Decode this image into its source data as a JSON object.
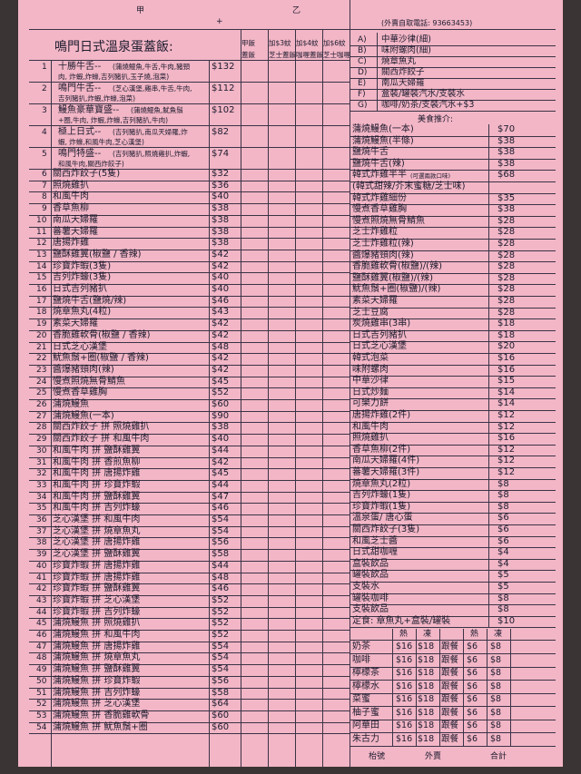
{
  "header": {
    "left": "甲",
    "plus": "+",
    "right": "乙",
    "phone": "(外賣自取電話: 93663453)"
  },
  "menu": {
    "title": "鳴門日式溫泉蛋蓋飯:",
    "columns": [
      [
        "甲飯",
        "蓋飯"
      ],
      [
        "加$3蚊",
        "芝士蓋飯"
      ],
      [
        "加$4蚊",
        "咖喱蓋飯"
      ],
      [
        "加$6蚊",
        "芝士咖喱"
      ]
    ],
    "items": [
      {
        "no": "1",
        "name": "十勝牛舌--",
        "desc": "(蒲燒鰻魚,牛舌,牛肉,豬頸肉, 炸蝦,炸蠔,吉列豬扒,玉子燒,泡菜)",
        "price": "$132"
      },
      {
        "no": "2",
        "name": "鳴門牛舌--",
        "desc": "(芝心漢堡,雞串,牛舌,牛肉, 吉列豬扒,炸蝦,炸蠔,泡菜)",
        "price": "$112"
      },
      {
        "no": "3",
        "name": "鰻魚豪華寶盛--",
        "desc": "(蒲燒鰻魚,魷魚鬚+圈,牛肉, 炸蝦,炸蠔,吉列豬扒,牛肉)",
        "price": "$102"
      },
      {
        "no": "4",
        "name": "極上日式--",
        "desc": "(吉列豬扒,南瓜天婦羅,炸蝦, 炸蠔,和風牛肉,芝心漢堡)",
        "price": "$82"
      },
      {
        "no": "5",
        "name": "鳴門特盛--",
        "desc": "(吉列豬扒,照燒雞扒,炸蝦, 和風牛肉,關西炸餃子)",
        "price": "$74"
      },
      {
        "no": "6",
        "name": "關西炸餃子(5隻)",
        "price": "$32"
      },
      {
        "no": "7",
        "name": "照燒雞扒",
        "price": "$36"
      },
      {
        "no": "8",
        "name": "和風牛肉",
        "price": "$40"
      },
      {
        "no": "9",
        "name": "香草魚柳",
        "price": "$38"
      },
      {
        "no": "10",
        "name": "南瓜天婦羅",
        "price": "$38"
      },
      {
        "no": "11",
        "name": "蕃薯天婦羅",
        "price": "$38"
      },
      {
        "no": "12",
        "name": "唐揚炸雞",
        "price": "$38"
      },
      {
        "no": "13",
        "name": "鹽酥雞翼(椒鹽 / 香辣)",
        "price": "$42"
      },
      {
        "no": "14",
        "name": "珍寶炸蝦(3隻)",
        "price": "$42"
      },
      {
        "no": "15",
        "name": "吉列炸蠔(3隻)",
        "price": "$40"
      },
      {
        "no": "16",
        "name": "日式吉列豬扒",
        "price": "$40"
      },
      {
        "no": "17",
        "name": "鹽燒牛舌(鹽燒/辣)",
        "price": "$46"
      },
      {
        "no": "18",
        "name": "燒章魚丸(4粒)",
        "price": "$43"
      },
      {
        "no": "19",
        "name": "素菜天婦羅",
        "price": "$42"
      },
      {
        "no": "20",
        "name": "香脆雞軟骨(椒鹽 / 香辣)",
        "price": "$42"
      },
      {
        "no": "21",
        "name": "日式芝心漢堡",
        "price": "$48"
      },
      {
        "no": "22",
        "name": "魷魚鬚+圈(椒鹽 / 香辣)",
        "price": "$42"
      },
      {
        "no": "23",
        "name": "醬爆豬頸肉(辣)",
        "price": "$42"
      },
      {
        "no": "24",
        "name": "慢煮照燒無骨鯖魚",
        "price": "$45"
      },
      {
        "no": "25",
        "name": "慢煮香草雞胸",
        "price": "$52"
      },
      {
        "no": "26",
        "name": "蒲燒鰻魚",
        "price": "$60"
      },
      {
        "no": "27",
        "name": "蒲燒鰻魚(一本)",
        "price": "$90"
      },
      {
        "no": "28",
        "name": "關西炸餃子 拼 照燒雞扒",
        "price": "$38"
      },
      {
        "no": "29",
        "name": "關西炸餃子 拼 和風牛肉",
        "price": "$40"
      },
      {
        "no": "30",
        "name": "和風牛肉 拼 鹽酥雞翼",
        "price": "$44"
      },
      {
        "no": "31",
        "name": "和風牛肉 拼 香煎魚柳",
        "price": "$42"
      },
      {
        "no": "32",
        "name": "和風牛肉 拼 唐揚炸雞",
        "price": "$45"
      },
      {
        "no": "33",
        "name": "和風牛肉 拼 珍寶炸蝦",
        "price": "$44"
      },
      {
        "no": "34",
        "name": "和風牛肉 拼 鹽酥雞翼",
        "price": "$47"
      },
      {
        "no": "35",
        "name": "和風牛肉 拼 吉列炸蠔",
        "price": "$46"
      },
      {
        "no": "36",
        "name": "芝心漢堡 拼 和風牛肉",
        "price": "$54"
      },
      {
        "no": "37",
        "name": "芝心漢堡 拼 燒章魚丸",
        "price": "$54"
      },
      {
        "no": "38",
        "name": "芝心漢堡 拼 唐揚炸雞",
        "price": "$56"
      },
      {
        "no": "39",
        "name": "芝心漢堡 拼 鹽酥雞翼",
        "price": "$58"
      },
      {
        "no": "40",
        "name": "珍寶炸蝦 拼 唐揚炸雞",
        "price": "$44"
      },
      {
        "no": "41",
        "name": "珍寶炸蝦 拼 唐揚炸雞",
        "price": "$48"
      },
      {
        "no": "42",
        "name": "珍寶炸蝦 拼 鹽酥雞翼",
        "price": "$46"
      },
      {
        "no": "43",
        "name": "珍寶炸蝦 拼 芝心漢堡",
        "price": "$52"
      },
      {
        "no": "44",
        "name": "珍寶炸蝦 拼 吉列炸蠔",
        "price": "$52"
      },
      {
        "no": "45",
        "name": "蒲燒鰻魚 拼 照燒雞扒",
        "price": "$52"
      },
      {
        "no": "46",
        "name": "蒲燒鰻魚 拼 和風牛肉",
        "price": "$52"
      },
      {
        "no": "47",
        "name": "蒲燒鰻魚 拼 唐揚炸雞",
        "price": "$54"
      },
      {
        "no": "48",
        "name": "蒲燒鰻魚 拼 燒章魚丸",
        "price": "$54"
      },
      {
        "no": "49",
        "name": "蒲燒鰻魚 拼 鹽酥雞翼",
        "price": "$54"
      },
      {
        "no": "50",
        "name": "蒲燒鰻魚 拼 珍寶炸蝦",
        "price": "$56"
      },
      {
        "no": "51",
        "name": "蒲燒鰻魚 拼 吉列炸蠔",
        "price": "$58"
      },
      {
        "no": "52",
        "name": "蒲燒鰻魚 拼 芝心漢堡",
        "price": "$64"
      },
      {
        "no": "53",
        "name": "蒲燒鰻魚 拼 香脆雞軟骨",
        "price": "$60"
      },
      {
        "no": "54",
        "name": "蒲燒鰻魚 拼 魷魚鬚+圈",
        "price": "$60"
      }
    ]
  },
  "sets": [
    {
      "letter": "A)",
      "name": "中華沙律(細)"
    },
    {
      "letter": "B)",
      "name": "味附螺肉(細)"
    },
    {
      "letter": "C)",
      "name": "燒章魚丸"
    },
    {
      "letter": "D)",
      "name": "關西炸餃子"
    },
    {
      "letter": "E)",
      "name": "南瓜天婦羅"
    },
    {
      "letter": "F)",
      "name": "盒裝/罐裝汽水/支裝水"
    },
    {
      "letter": "G)",
      "name": "咖啡/奶茶/支裝汽水+$3"
    }
  ],
  "recommend": {
    "title": "美食推介:",
    "items": [
      {
        "name": "蒲燒鰻魚(一本)",
        "price": "$70"
      },
      {
        "name": "蒲燒鰻魚(半條)",
        "price": "$38"
      },
      {
        "name": "鹽燒牛舌",
        "price": "$38"
      },
      {
        "name": "鹽燒牛舌(辣)",
        "price": "$38"
      },
      {
        "name": "韓式炸雞半半",
        "note": "(可選兩款口味)",
        "price": "$68"
      },
      {
        "name": "(韓式甜辣/芥末蜜糖/芝士味)"
      },
      {
        "name": "韓式炸雞細份",
        "price": "$35"
      },
      {
        "name": "慢煮香草雞胸",
        "price": "$38"
      },
      {
        "name": "慢煮照燒無骨鯖魚",
        "price": "$28"
      },
      {
        "name": "芝士炸雞粒",
        "price": "$28"
      },
      {
        "name": "芝士炸雞粒(辣)",
        "price": "$28"
      },
      {
        "name": "醬爆豬頸肉(辣)",
        "price": "$28"
      },
      {
        "name": "香脆雞軟骨(椒鹽)/(辣)",
        "price": "$28"
      },
      {
        "name": "鹽酥雞翼(椒鹽)/(辣)",
        "price": "$28"
      },
      {
        "name": "魷魚鬚+圈(椒鹽)/(辣)",
        "price": "$28"
      },
      {
        "name": "素菜天婦羅",
        "price": "$28"
      },
      {
        "name": "芝士豆腐",
        "price": "$28"
      },
      {
        "name": "炭燒雞串(3串)",
        "price": "$18"
      },
      {
        "name": "日式吉列豬扒",
        "price": "$18"
      },
      {
        "name": "日式芝心漢堡",
        "price": "$20"
      },
      {
        "name": "韓式泡菜",
        "price": "$16"
      },
      {
        "name": "味附螺肉",
        "price": "$16"
      },
      {
        "name": "中華沙律",
        "price": "$15"
      },
      {
        "name": "日式炒麵",
        "price": "$14"
      },
      {
        "name": "可樂力餅",
        "price": "$14"
      },
      {
        "name": "唐揚炸雞(2件)",
        "price": "$12"
      },
      {
        "name": "和風牛肉",
        "price": "$12"
      },
      {
        "name": "照燒雞扒",
        "price": "$16"
      },
      {
        "name": "香草魚柳(2件)",
        "price": "$12"
      },
      {
        "name": "南瓜天婦羅(4件)",
        "price": "$12"
      },
      {
        "name": "蕃薯天婦羅(3件)",
        "price": "$12"
      },
      {
        "name": "燒章魚丸(2粒)",
        "price": "$8"
      },
      {
        "name": "吉列炸蠔(1隻)",
        "price": "$8"
      },
      {
        "name": "珍寶炸蝦(1隻)",
        "price": "$8"
      },
      {
        "name": "溫泉蛋/ 唐心蛋",
        "price": "$6"
      },
      {
        "name": "關西炸餃子(3隻)",
        "price": "$6"
      },
      {
        "name": "和風芝士醬",
        "price": "$6"
      },
      {
        "name": "日式甜咖喱",
        "price": "$4"
      },
      {
        "name": "盒裝飲品",
        "price": "$4"
      },
      {
        "name": "罐裝飲品",
        "price": "$5"
      },
      {
        "name": "支裝水",
        "price": "$5"
      },
      {
        "name": "罐裝咖啡",
        "price": "$8"
      },
      {
        "name": "支裝飲品",
        "price": "$8"
      },
      {
        "name": "定食: 章魚丸+盒裝/罐裝",
        "price": "$10"
      }
    ]
  },
  "drinks": {
    "header": [
      "熱",
      "凍",
      "熱",
      "凍"
    ],
    "rows": [
      [
        "奶茶",
        "$16",
        "$18",
        "跟餐",
        "$6",
        "$8"
      ],
      [
        "咖啡",
        "$16",
        "$18",
        "跟餐",
        "$6",
        "$8"
      ],
      [
        "檸檬茶",
        "$16",
        "$18",
        "跟餐",
        "$6",
        "$8"
      ],
      [
        "檸檬水",
        "$16",
        "$18",
        "跟餐",
        "$6",
        "$8"
      ],
      [
        "菜蜜",
        "$16",
        "$18",
        "跟餐",
        "$6",
        "$8"
      ],
      [
        "柚子蜜",
        "$16",
        "$18",
        "跟餐",
        "$6",
        "$8"
      ],
      [
        "阿華田",
        "$16",
        "$18",
        "跟餐",
        "$6",
        "$8"
      ],
      [
        "朱古力",
        "$16",
        "$18",
        "跟餐",
        "$6",
        "$8"
      ]
    ]
  },
  "footer": [
    "枱號",
    "外賣",
    "合計"
  ]
}
